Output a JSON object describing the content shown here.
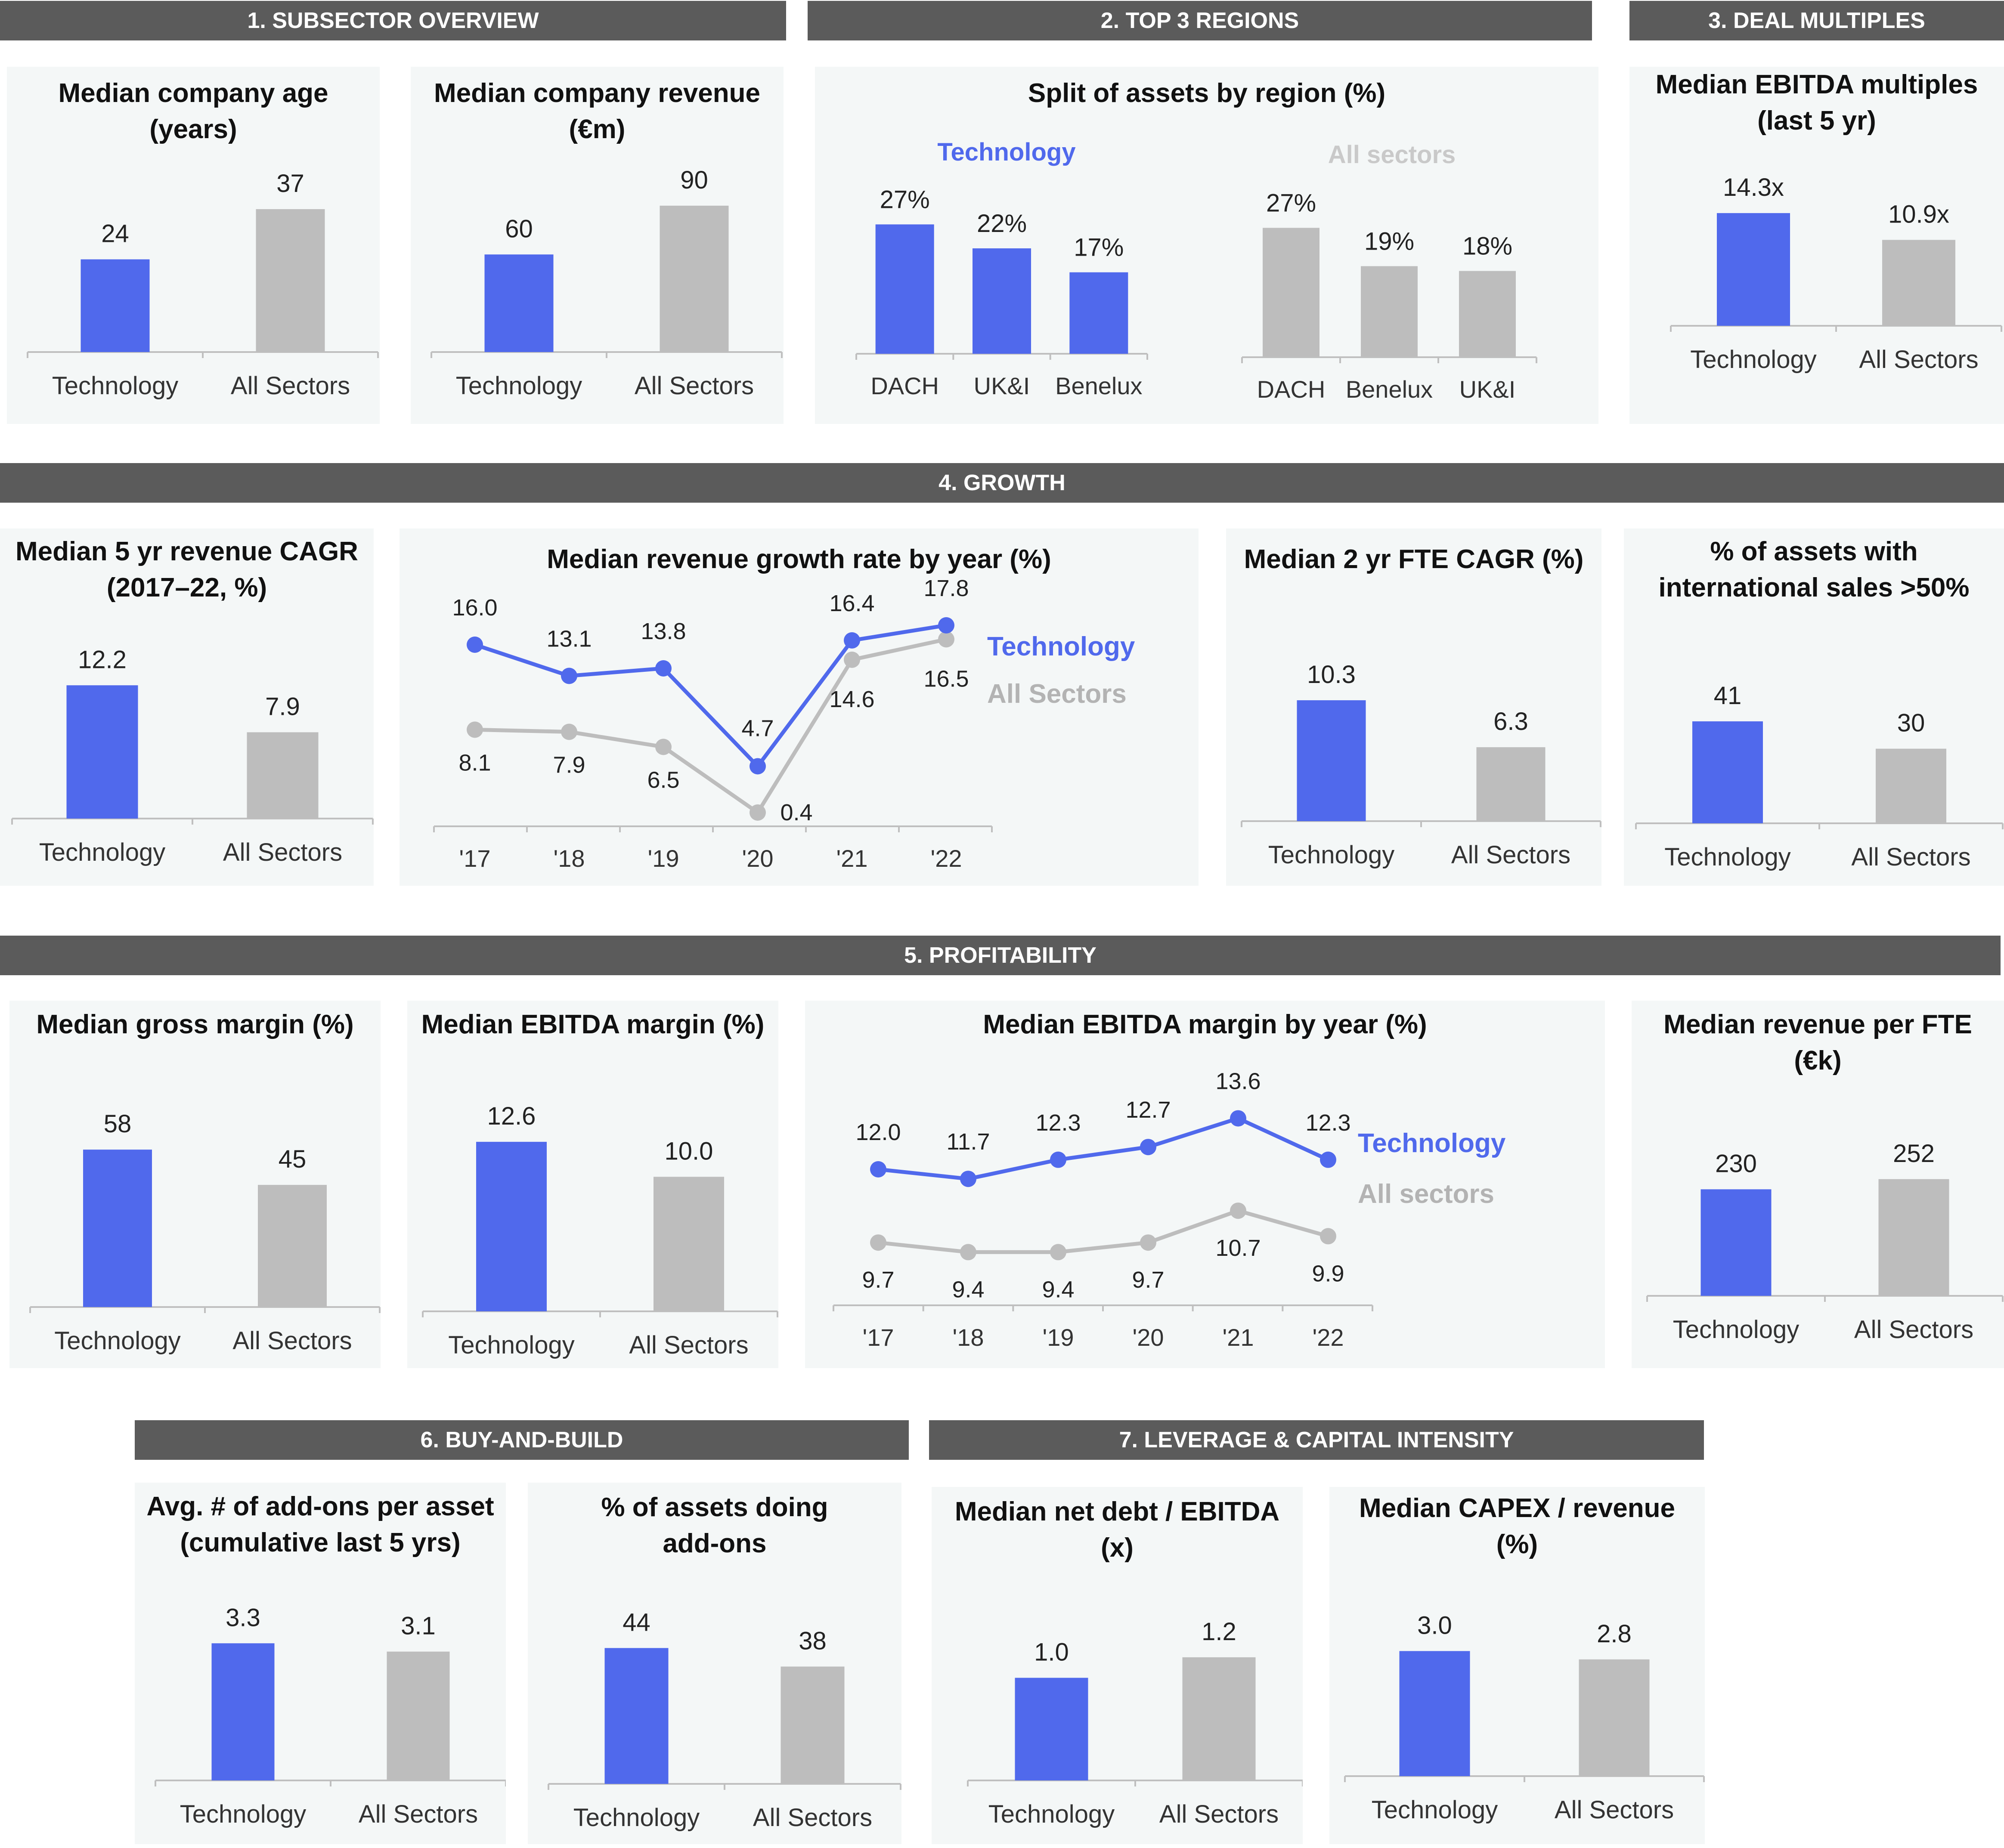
{
  "colors": {
    "tech": "#5069ec",
    "all": "#bdbdbd",
    "header_bg": "#5b5b5b",
    "panel_bg": "#f4f7f7"
  },
  "headers": {
    "s1": "1. SUBSECTOR OVERVIEW",
    "s2": "2. TOP 3 REGIONS",
    "s3": "3. DEAL MULTIPLES",
    "s4": "4. GROWTH",
    "s5": "5.  PROFITABILITY",
    "s6": "6. BUY-AND-BUILD",
    "s7": "7. LEVERAGE & CAPITAL INTENSITY"
  },
  "panels": {
    "age": {
      "title": [
        "Median company age",
        "(years)"
      ]
    },
    "revenue": {
      "title": [
        "Median company revenue",
        "(€m)"
      ]
    },
    "regions": {
      "title": [
        "Split of assets by region (%)"
      ]
    },
    "ebitda_mult": {
      "title": [
        "Median EBITDA multiples",
        "(last 5 yr)"
      ]
    },
    "cagr5": {
      "title": [
        "Median 5 yr revenue CAGR",
        "(2017–22, %)"
      ]
    },
    "growth_year": {
      "title": [
        "Median revenue growth rate by year (%)"
      ]
    },
    "fte_cagr": {
      "title": [
        "Median 2 yr FTE CAGR (%)"
      ]
    },
    "intl": {
      "title": [
        "% of assets with",
        "international sales >50%"
      ]
    },
    "gross": {
      "title": [
        "Median gross margin (%)"
      ]
    },
    "ebitda_margin": {
      "title": [
        "Median EBITDA margin (%)"
      ]
    },
    "ebitda_year": {
      "title": [
        "Median EBITDA margin by year (%)"
      ]
    },
    "rev_fte": {
      "title": [
        "Median revenue per FTE",
        "(€k)"
      ]
    },
    "addons": {
      "title": [
        "Avg. # of add-ons per asset",
        "(cumulative last 5 yrs)"
      ]
    },
    "addon_pct": {
      "title": [
        "% of assets doing",
        "add-ons"
      ]
    },
    "netdebt": {
      "title": [
        "Median net debt / EBITDA",
        "(x)"
      ]
    },
    "capex": {
      "title": [
        "Median CAPEX / revenue",
        "(%)"
      ]
    }
  },
  "chart_data": [
    {
      "id": "age",
      "type": "bar",
      "categories": [
        "Technology",
        "All Sectors"
      ],
      "values": [
        24,
        37
      ],
      "labels": [
        "24",
        "37"
      ],
      "ylim": [
        0,
        40
      ]
    },
    {
      "id": "revenue",
      "type": "bar",
      "categories": [
        "Technology",
        "All Sectors"
      ],
      "values": [
        60,
        90
      ],
      "labels": [
        "60",
        "90"
      ],
      "ylim": [
        0,
        95
      ]
    },
    {
      "id": "regions",
      "type": "bar",
      "groups": [
        {
          "name": "Technology",
          "categories": [
            "DACH",
            "UK&I",
            "Benelux"
          ],
          "values": [
            27,
            22,
            17
          ],
          "labels": [
            "27%",
            "22%",
            "17%"
          ]
        },
        {
          "name": "All sectors",
          "categories": [
            "DACH",
            "Benelux",
            "UK&I"
          ],
          "values": [
            27,
            19,
            18
          ],
          "labels": [
            "27%",
            "19%",
            "18%"
          ]
        }
      ],
      "ylim": [
        0,
        30
      ]
    },
    {
      "id": "ebitda_mult",
      "type": "bar",
      "categories": [
        "Technology",
        "All Sectors"
      ],
      "values": [
        14.3,
        10.9
      ],
      "labels": [
        "14.3x",
        "10.9x"
      ],
      "ylim": [
        0,
        16
      ]
    },
    {
      "id": "cagr5",
      "type": "bar",
      "categories": [
        "Technology",
        "All Sectors"
      ],
      "values": [
        12.2,
        7.9
      ],
      "labels": [
        "12.2",
        "7.9"
      ],
      "ylim": [
        0,
        13
      ]
    },
    {
      "id": "growth_year",
      "type": "line",
      "x": [
        "'17",
        "'18",
        "'19",
        "'20",
        "'21",
        "'22"
      ],
      "series": [
        {
          "name": "Technology",
          "values": [
            16.0,
            13.1,
            13.8,
            4.7,
            16.4,
            17.8
          ],
          "labels": [
            "16.0",
            "13.1",
            "13.8",
            "4.7",
            "16.4",
            "17.8"
          ]
        },
        {
          "name": "All Sectors",
          "values": [
            8.1,
            7.9,
            6.5,
            0.4,
            14.6,
            16.5
          ],
          "labels": [
            "8.1",
            "7.9",
            "6.5",
            "0.4",
            "14.6",
            "16.5"
          ]
        }
      ],
      "ylim": [
        -1,
        19
      ]
    },
    {
      "id": "fte_cagr",
      "type": "bar",
      "categories": [
        "Technology",
        "All Sectors"
      ],
      "values": [
        10.3,
        6.3
      ],
      "labels": [
        "10.3",
        "6.3"
      ],
      "ylim": [
        0,
        11
      ]
    },
    {
      "id": "intl",
      "type": "bar",
      "categories": [
        "Technology",
        "All Sectors"
      ],
      "values": [
        41,
        30
      ],
      "labels": [
        "41",
        "30"
      ],
      "ylim": [
        0,
        45
      ]
    },
    {
      "id": "gross",
      "type": "bar",
      "categories": [
        "Technology",
        "All Sectors"
      ],
      "values": [
        58,
        45
      ],
      "labels": [
        "58",
        "45"
      ],
      "ylim": [
        0,
        62
      ]
    },
    {
      "id": "ebitda_margin",
      "type": "bar",
      "categories": [
        "Technology",
        "All Sectors"
      ],
      "values": [
        12.6,
        10.0
      ],
      "labels": [
        "12.6",
        "10.0"
      ],
      "ylim": [
        0,
        13.5
      ]
    },
    {
      "id": "ebitda_year",
      "type": "line",
      "x": [
        "'17",
        "'18",
        "'19",
        "'20",
        "'21",
        "'22"
      ],
      "series": [
        {
          "name": "Technology",
          "values": [
            12.0,
            11.7,
            12.3,
            12.7,
            13.6,
            12.3
          ],
          "labels": [
            "12.0",
            "11.7",
            "12.3",
            "12.7",
            "13.6",
            "12.3"
          ]
        },
        {
          "name": "All sectors",
          "values": [
            9.7,
            9.4,
            9.4,
            9.7,
            10.7,
            9.9
          ],
          "labels": [
            "9.7",
            "9.4",
            "9.4",
            "9.7",
            "10.7",
            "9.9"
          ]
        }
      ],
      "ylim": [
        0,
        20
      ]
    },
    {
      "id": "rev_fte",
      "type": "bar",
      "categories": [
        "Technology",
        "All Sectors"
      ],
      "values": [
        230,
        252
      ],
      "labels": [
        "230",
        "252"
      ],
      "ylim": [
        0,
        275
      ]
    },
    {
      "id": "addons",
      "type": "bar",
      "categories": [
        "Technology",
        "All Sectors"
      ],
      "values": [
        3.3,
        3.1
      ],
      "labels": [
        "3.3",
        "3.1"
      ],
      "ylim": [
        0,
        3.5
      ]
    },
    {
      "id": "addon_pct",
      "type": "bar",
      "categories": [
        "Technology",
        "All Sectors"
      ],
      "values": [
        44,
        38
      ],
      "labels": [
        "44",
        "38"
      ],
      "ylim": [
        0,
        46
      ]
    },
    {
      "id": "netdebt",
      "type": "bar",
      "categories": [
        "Technology",
        "All Sectors"
      ],
      "values": [
        1.0,
        1.2
      ],
      "labels": [
        "1.0",
        "1.2"
      ],
      "ylim": [
        0,
        1.3
      ]
    },
    {
      "id": "capex",
      "type": "bar",
      "categories": [
        "Technology",
        "All Sectors"
      ],
      "values": [
        3.0,
        2.8
      ],
      "labels": [
        "3.0",
        "2.8"
      ],
      "ylim": [
        0,
        3.2
      ]
    }
  ]
}
